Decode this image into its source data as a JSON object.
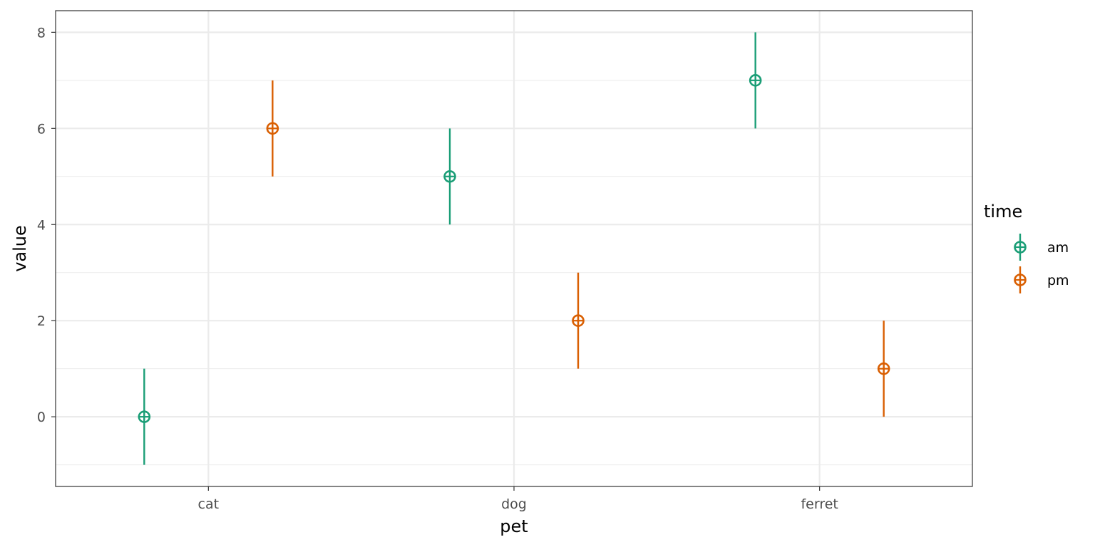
{
  "chart_data": {
    "type": "scatter",
    "title": "",
    "xlabel": "pet",
    "ylabel": "value",
    "categories": [
      "cat",
      "dog",
      "ferret"
    ],
    "ylim": [
      -1.45,
      8.45
    ],
    "yticks": [
      0,
      2,
      4,
      6,
      8
    ],
    "grid": true,
    "legend": {
      "title": "time",
      "position": "right"
    },
    "series": [
      {
        "name": "am",
        "color": "#1b9e77",
        "values": [
          0,
          5,
          7
        ],
        "lower": [
          -1,
          4,
          6
        ],
        "upper": [
          1,
          6,
          8
        ]
      },
      {
        "name": "pm",
        "color": "#d95f02",
        "values": [
          6,
          2,
          1
        ],
        "lower": [
          5,
          1,
          0
        ],
        "upper": [
          7,
          3,
          2
        ]
      }
    ]
  }
}
